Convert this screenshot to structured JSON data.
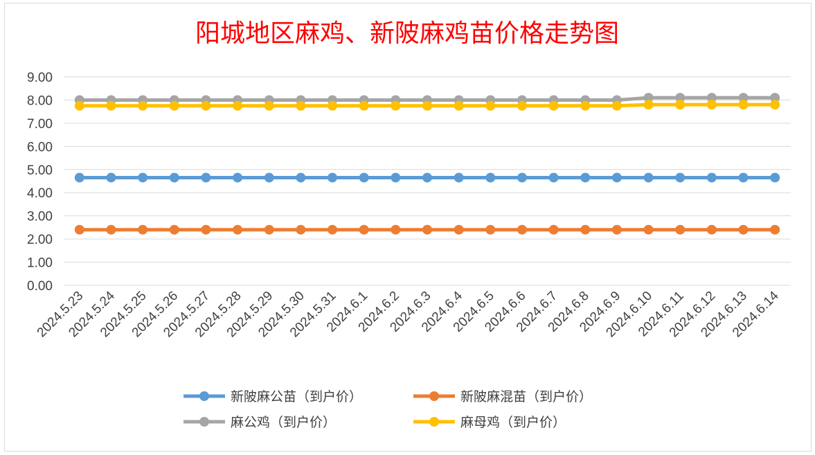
{
  "chart_data": {
    "type": "line",
    "title": "阳城地区麻鸡、新陂麻鸡苗价格走势图",
    "xlabel": "",
    "ylabel": "",
    "ylim": [
      0,
      9
    ],
    "yticks": [
      "0.00",
      "1.00",
      "2.00",
      "3.00",
      "4.00",
      "5.00",
      "6.00",
      "7.00",
      "8.00",
      "9.00"
    ],
    "grid": true,
    "legend_position": "bottom",
    "categories": [
      "2024.5.23",
      "2024.5.24",
      "2024.5.25",
      "2024.5.26",
      "2024.5.27",
      "2024.5.28",
      "2024.5.29",
      "2024.5.30",
      "2024.5.31",
      "2024.6.1",
      "2024.6.2",
      "2024.6.3",
      "2024.6.4",
      "2024.6.5",
      "2024.6.6",
      "2024.6.7",
      "2024.6.8",
      "2024.6.9",
      "2024.6.10",
      "2024.6.11",
      "2024.6.12",
      "2024.6.13",
      "2024.6.14"
    ],
    "series": [
      {
        "name": "新陂麻公苗（到户价）",
        "color": "#5b9bd5",
        "values": [
          4.65,
          4.65,
          4.65,
          4.65,
          4.65,
          4.65,
          4.65,
          4.65,
          4.65,
          4.65,
          4.65,
          4.65,
          4.65,
          4.65,
          4.65,
          4.65,
          4.65,
          4.65,
          4.65,
          4.65,
          4.65,
          4.65,
          4.65
        ]
      },
      {
        "name": "新陂麻混苗（到户价）",
        "color": "#ed7d31",
        "values": [
          2.4,
          2.4,
          2.4,
          2.4,
          2.4,
          2.4,
          2.4,
          2.4,
          2.4,
          2.4,
          2.4,
          2.4,
          2.4,
          2.4,
          2.4,
          2.4,
          2.4,
          2.4,
          2.4,
          2.4,
          2.4,
          2.4,
          2.4
        ]
      },
      {
        "name": "麻公鸡（到户价）",
        "color": "#a5a5a5",
        "values": [
          8.0,
          8.0,
          8.0,
          8.0,
          8.0,
          8.0,
          8.0,
          8.0,
          8.0,
          8.0,
          8.0,
          8.0,
          8.0,
          8.0,
          8.0,
          8.0,
          8.0,
          8.0,
          8.1,
          8.1,
          8.1,
          8.1,
          8.1
        ]
      },
      {
        "name": "麻母鸡（到户价）",
        "color": "#ffc000",
        "values": [
          7.75,
          7.75,
          7.75,
          7.75,
          7.75,
          7.75,
          7.75,
          7.75,
          7.75,
          7.75,
          7.75,
          7.75,
          7.75,
          7.75,
          7.75,
          7.75,
          7.75,
          7.75,
          7.8,
          7.8,
          7.8,
          7.8,
          7.8
        ]
      }
    ]
  }
}
